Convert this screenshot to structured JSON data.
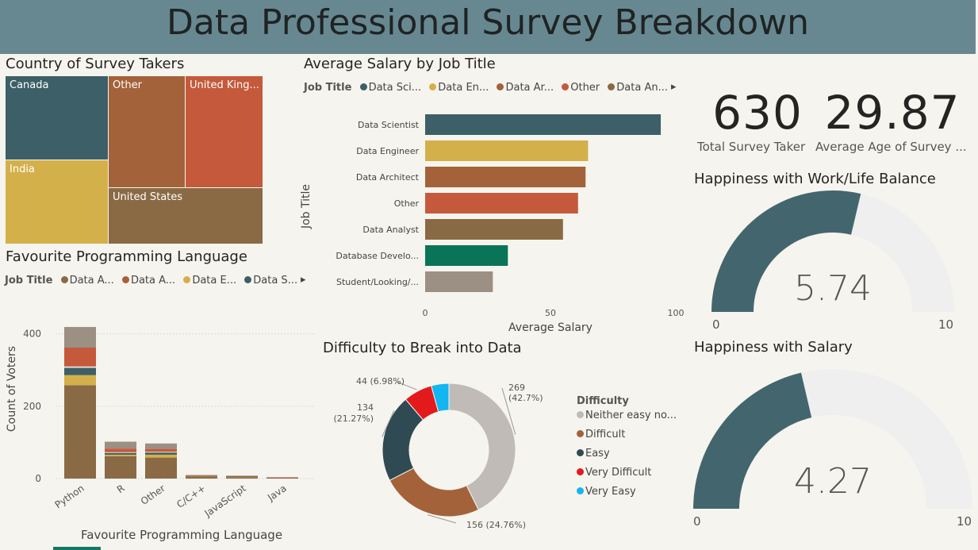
{
  "header": {
    "title": "Data Professional Survey Breakdown"
  },
  "treemap": {
    "title": "Country of Survey Takers",
    "cells": [
      {
        "label": "Canada",
        "color": "#3d5f67"
      },
      {
        "label": "Other",
        "color": "#a3623a"
      },
      {
        "label": "United King...",
        "color": "#c45a3b"
      },
      {
        "label": "India",
        "color": "#d4b04a"
      },
      {
        "label": "United States",
        "color": "#8a6a45"
      }
    ]
  },
  "salary_by_job": {
    "title": "Average Salary by Job Title",
    "legend_title": "Job Title",
    "legend": [
      {
        "label": "Data Sci...",
        "color": "#3d5f67"
      },
      {
        "label": "Data En...",
        "color": "#d4b04a"
      },
      {
        "label": "Data Ar...",
        "color": "#a3623a"
      },
      {
        "label": "Other",
        "color": "#c45a3b"
      },
      {
        "label": "Data An...",
        "color": "#8a6a45"
      }
    ],
    "legend_arrow": "▸"
  },
  "languages": {
    "title": "Favourite Programming Language",
    "legend_title": "Job Title",
    "legend": [
      {
        "label": "Data A...",
        "color": "#8a6a45"
      },
      {
        "label": "Data A...",
        "color": "#a3623a"
      },
      {
        "label": "Data E...",
        "color": "#d4b04a"
      },
      {
        "label": "Data S...",
        "color": "#3d5f67"
      }
    ],
    "legend_arrow": "▸"
  },
  "difficulty": {
    "title": "Difficulty to Break into Data",
    "legend_title": "Difficulty",
    "legend": [
      {
        "label": "Neither easy no...",
        "color": "#c0bbb6"
      },
      {
        "label": "Difficult",
        "color": "#a3623a"
      },
      {
        "label": "Easy",
        "color": "#2f4a52"
      },
      {
        "label": "Very Difficult",
        "color": "#e21a1c"
      },
      {
        "label": "Very Easy",
        "color": "#12b6f0"
      }
    ],
    "slice_labels": [
      {
        "line1": "269",
        "line2": "(42.7%)"
      },
      {
        "line1": "156 (24.76%)",
        "line2": ""
      },
      {
        "line1": "134",
        "line2": "(21.27%)"
      },
      {
        "line1": "44 (6.98%)",
        "line2": ""
      }
    ]
  },
  "kpis": {
    "total": {
      "value": "630",
      "label": "Total Survey Taker"
    },
    "age": {
      "value": "29.87",
      "label": "Average Age of Survey ..."
    }
  },
  "gauges": {
    "worklife": {
      "title": "Happiness with Work/Life Balance",
      "value": 5.74,
      "display": "5.74",
      "min": "0",
      "max": "10",
      "fill_color": "#43666e",
      "track_color": "#efefef"
    },
    "salary": {
      "title": "Happiness with Salary",
      "value": 4.27,
      "display": "4.27",
      "min": "0",
      "max": "10",
      "fill_color": "#43666e",
      "track_color": "#efefef"
    }
  },
  "chart_data": [
    {
      "type": "bar",
      "orientation": "horizontal",
      "title": "Average Salary by Job Title",
      "xlabel": "Average Salary",
      "ylabel": "Job Title",
      "xlim": [
        0,
        100
      ],
      "xticks": [
        "0",
        "50",
        "100"
      ],
      "categories": [
        "Data Scientist",
        "Data Engineer",
        "Data Architect",
        "Other",
        "Data Analyst",
        "Database Develo...",
        "Student/Looking/..."
      ],
      "values": [
        94,
        65,
        64,
        61,
        55,
        33,
        27
      ],
      "colors": [
        "#3d5f67",
        "#d4b04a",
        "#a3623a",
        "#c45a3b",
        "#8a6a45",
        "#0a7458",
        "#9c8f84"
      ]
    },
    {
      "type": "bar",
      "stacked": true,
      "title": "Favourite Programming Language",
      "xlabel": "Favourite Programming Language",
      "ylabel": "Count of Voters",
      "ylim": [
        0,
        430
      ],
      "yticks": [
        "0",
        "200",
        "400"
      ],
      "categories": [
        "Python",
        "R",
        "Other",
        "C/C++",
        "JavaScript",
        "Java"
      ],
      "series": [
        {
          "color": "#8a6a45",
          "values": [
            258,
            62,
            58,
            5,
            4,
            2
          ]
        },
        {
          "color": "#d4b04a",
          "values": [
            28,
            4,
            8,
            1,
            1,
            0
          ]
        },
        {
          "color": "#3d5f67",
          "values": [
            20,
            5,
            6,
            1,
            1,
            0
          ]
        },
        {
          "color": "#e8e2d8",
          "values": [
            4,
            2,
            2,
            0,
            0,
            0
          ]
        },
        {
          "color": "#c45a3b",
          "values": [
            52,
            10,
            8,
            1,
            1,
            1
          ]
        },
        {
          "color": "#9c8f84",
          "values": [
            57,
            19,
            15,
            2,
            1,
            1
          ]
        }
      ]
    },
    {
      "type": "pie",
      "donut": true,
      "title": "Difficulty to Break into Data",
      "legend_title": "Difficulty",
      "categories": [
        "Neither easy no...",
        "Difficult",
        "Easy",
        "Very Difficult",
        "Very Easy"
      ],
      "values": [
        269,
        156,
        134,
        44,
        27
      ],
      "colors": [
        "#c0bbb6",
        "#a3623a",
        "#2f4a52",
        "#e21a1c",
        "#12b6f0"
      ]
    }
  ]
}
